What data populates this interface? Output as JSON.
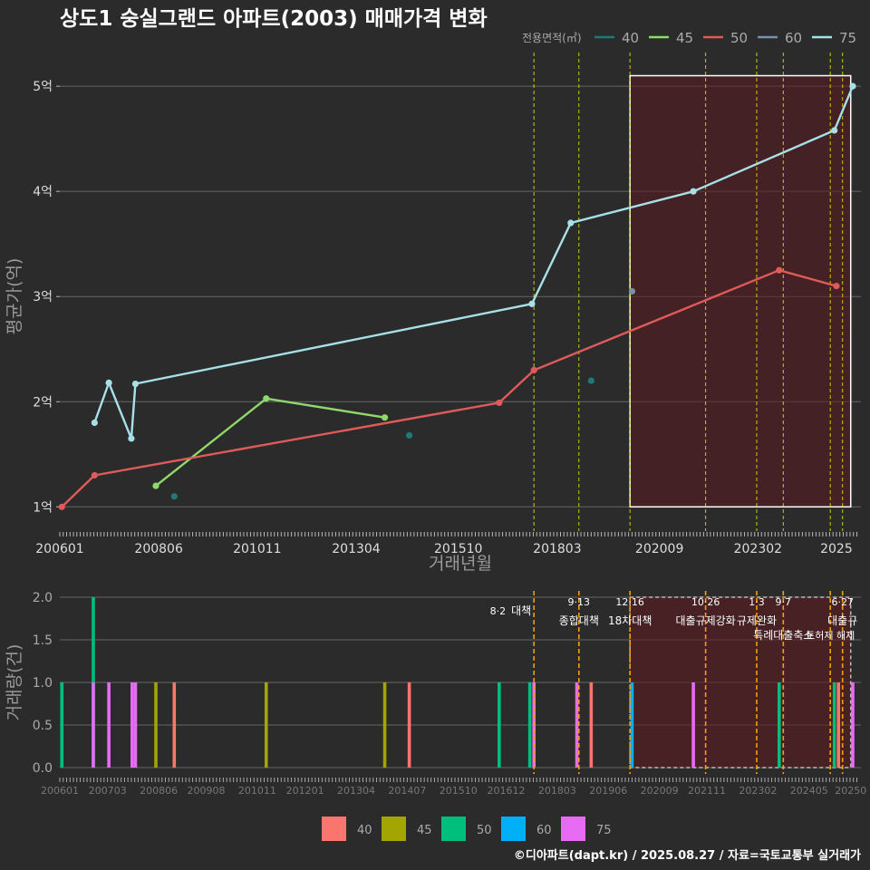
{
  "chart_data": [
    {
      "type": "line",
      "title": "상도1 숭실그랜드 아파트(2003) 매매가격 변화",
      "xlabel": "거래년월",
      "ylabel": "평균가(억)",
      "legend_title": "전용면적(㎡)",
      "legend_position": "top-right",
      "x_ticks": [
        "200601",
        "200806",
        "201011",
        "201304",
        "201510",
        "201803",
        "202009",
        "202302",
        "2025"
      ],
      "y_ticks": [
        {
          "v": 1,
          "label": "1억"
        },
        {
          "v": 2,
          "label": "2억"
        },
        {
          "v": 3,
          "label": "3억"
        },
        {
          "v": 4,
          "label": "4억"
        },
        {
          "v": 5,
          "label": "5억"
        }
      ],
      "x_range": [
        2006.0,
        2025.6
      ],
      "y_range": [
        0.77,
        5.32
      ],
      "series": [
        {
          "name": "40",
          "color": "#1f7a73",
          "points": [
            [
              2008.8,
              1.1
            ],
            [
              2014.55,
              1.68
            ],
            [
              2019.0,
              2.2
            ]
          ]
        },
        {
          "name": "45",
          "color": "#8fd96b",
          "points": [
            [
              2008.35,
              1.2
            ],
            [
              2011.05,
              2.03
            ],
            [
              2013.95,
              1.85
            ]
          ]
        },
        {
          "name": "50",
          "color": "#e05a5a",
          "points": [
            [
              2006.05,
              1.0
            ],
            [
              2006.85,
              1.3
            ],
            [
              2016.75,
              1.99
            ],
            [
              2017.6,
              2.3
            ],
            [
              2023.6,
              3.25
            ],
            [
              2025.0,
              3.1
            ]
          ]
        },
        {
          "name": "60",
          "color": "#7a8fa8",
          "points": [
            [
              2020.0,
              3.05
            ]
          ]
        },
        {
          "name": "75",
          "color": "#a8e0e8",
          "points": [
            [
              2006.85,
              1.8
            ],
            [
              2007.2,
              2.18
            ],
            [
              2007.75,
              1.65
            ],
            [
              2007.85,
              2.17
            ],
            [
              2017.55,
              2.93
            ],
            [
              2018.5,
              3.7
            ],
            [
              2021.5,
              4.0
            ],
            [
              2024.95,
              4.58
            ],
            [
              2025.4,
              5.0
            ]
          ]
        }
      ],
      "policy_lines": [
        2017.6,
        2018.7,
        2019.95,
        2021.8,
        2023.05,
        2023.7,
        2024.85,
        2025.15
      ],
      "highlight_range": [
        2019.95,
        2025.35
      ]
    },
    {
      "type": "bar",
      "xlabel": "",
      "ylabel": "거래량(건)",
      "x_ticks": [
        "200601",
        "200703",
        "200806",
        "200908",
        "201011",
        "201201",
        "201304",
        "201407",
        "201510",
        "201612",
        "201803",
        "201906",
        "202009",
        "202111",
        "202302",
        "202405",
        "20250"
      ],
      "y_ticks": [
        "0.0",
        "0.5",
        "1.0",
        "1.5",
        "2.0"
      ],
      "y_range": [
        0,
        2.0
      ],
      "legend_position": "bottom",
      "legend": [
        {
          "name": "40",
          "color": "#f8766d"
        },
        {
          "name": "45",
          "color": "#a3a500"
        },
        {
          "name": "50",
          "color": "#00bf7d"
        },
        {
          "name": "60",
          "color": "#00b0f6"
        },
        {
          "name": "75",
          "color": "#e76bf3"
        }
      ],
      "bars": [
        {
          "x": 2006.05,
          "series": "50",
          "value": 1
        },
        {
          "x": 2006.82,
          "series": "50",
          "value": 2
        },
        {
          "x": 2006.82,
          "series": "75",
          "value": 1
        },
        {
          "x": 2007.2,
          "series": "75",
          "value": 1
        },
        {
          "x": 2007.77,
          "series": "75",
          "value": 1
        },
        {
          "x": 2007.85,
          "series": "75",
          "value": 1
        },
        {
          "x": 2008.35,
          "series": "45",
          "value": 1
        },
        {
          "x": 2008.8,
          "series": "40",
          "value": 1
        },
        {
          "x": 2011.05,
          "series": "45",
          "value": 1
        },
        {
          "x": 2013.95,
          "series": "45",
          "value": 1
        },
        {
          "x": 2014.55,
          "series": "40",
          "value": 1
        },
        {
          "x": 2016.75,
          "series": "50",
          "value": 1
        },
        {
          "x": 2017.5,
          "series": "50",
          "value": 1
        },
        {
          "x": 2017.6,
          "series": "75",
          "value": 1
        },
        {
          "x": 2018.65,
          "series": "75",
          "value": 1
        },
        {
          "x": 2019.0,
          "series": "40",
          "value": 1
        },
        {
          "x": 2020.0,
          "series": "60",
          "value": 1
        },
        {
          "x": 2021.5,
          "series": "75",
          "value": 1
        },
        {
          "x": 2023.6,
          "series": "50",
          "value": 1
        },
        {
          "x": 2024.95,
          "series": "50",
          "value": 1
        },
        {
          "x": 2025.05,
          "series": "40",
          "value": 1
        },
        {
          "x": 2025.4,
          "series": "75",
          "value": 1
        }
      ],
      "annotations": [
        {
          "x": 2017.6,
          "date": "8·2",
          "text": "대책"
        },
        {
          "x": 2018.7,
          "date": "9·13",
          "text": "종합대책"
        },
        {
          "x": 2019.95,
          "date": "12·16",
          "text": "18차대책"
        },
        {
          "x": 2021.8,
          "date": "10·26",
          "text": "대출규제강화"
        },
        {
          "x": 2023.05,
          "date": "1·3",
          "text": "규제완화"
        },
        {
          "x": 2023.7,
          "date": "9·7",
          "text": "특례대출축소"
        },
        {
          "x": 2024.85,
          "date": "",
          "text": "토허제 해제"
        },
        {
          "x": 2025.15,
          "date": "6·27",
          "text": "대출규"
        }
      ],
      "highlight_range": [
        2019.95,
        2025.35
      ]
    }
  ],
  "footer": "©디아파트(dapt.kr) / 2025.08.27 / 자료=국토교통부 실거래가"
}
